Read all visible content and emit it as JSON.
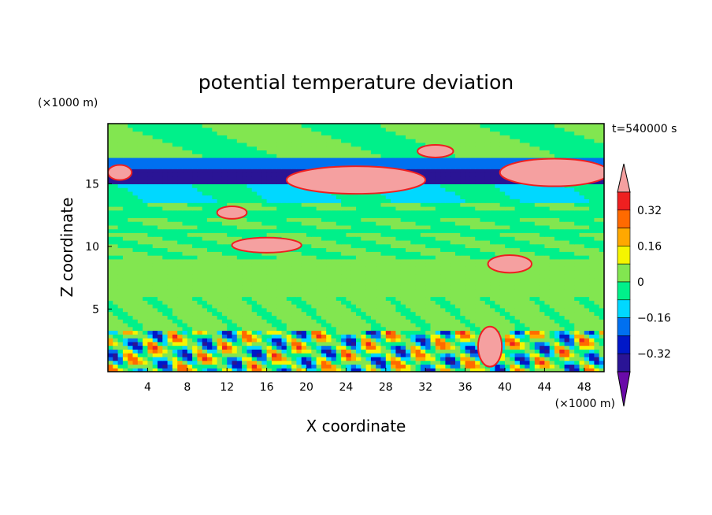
{
  "chart_data": {
    "type": "heatmap",
    "title": "potential temperature deviation",
    "xlabel": "X coordinate",
    "ylabel": "Z coordinate",
    "x_unit": "(×1000 m)",
    "y_unit": "(×1000 m)",
    "time_label": "t=540000 s",
    "xlim": [
      0,
      50
    ],
    "ylim": [
      0,
      19.8
    ],
    "x_ticks": [
      4,
      8,
      12,
      16,
      20,
      24,
      28,
      32,
      36,
      40,
      44,
      48
    ],
    "y_ticks": [
      5,
      10,
      15
    ],
    "colorbar": {
      "levels": [
        -0.4,
        -0.32,
        -0.24,
        -0.16,
        -0.08,
        0,
        0.08,
        0.16,
        0.24,
        0.32,
        0.4
      ],
      "tick_labels": [
        "0.32",
        "0.16",
        "0",
        "−0.16",
        "−0.32"
      ],
      "tick_values": [
        0.32,
        0.16,
        0,
        -0.16,
        -0.32
      ],
      "colors": [
        "#6a0aa8",
        "#2a1495",
        "#0018c8",
        "#0070f0",
        "#00d8ff",
        "#00f08a",
        "#82e650",
        "#f5f500",
        "#ffa800",
        "#ff6a00",
        "#ee2020",
        "#f5a0a0"
      ],
      "extend": "both"
    },
    "bands": [
      {
        "z": [
          0,
          3.4
        ],
        "description_level": "mixed -0.4 to 0.4"
      },
      {
        "z": [
          3.4,
          9.0
        ],
        "level": 0.04
      },
      {
        "z": [
          9.0,
          13.5
        ],
        "level": 0.0
      },
      {
        "z": [
          13.5,
          15.0
        ],
        "level": -0.1
      },
      {
        "z": [
          15.0,
          16.3
        ],
        "level": -0.36
      },
      {
        "z": [
          16.3,
          19.8
        ],
        "level": 0.02
      }
    ]
  }
}
